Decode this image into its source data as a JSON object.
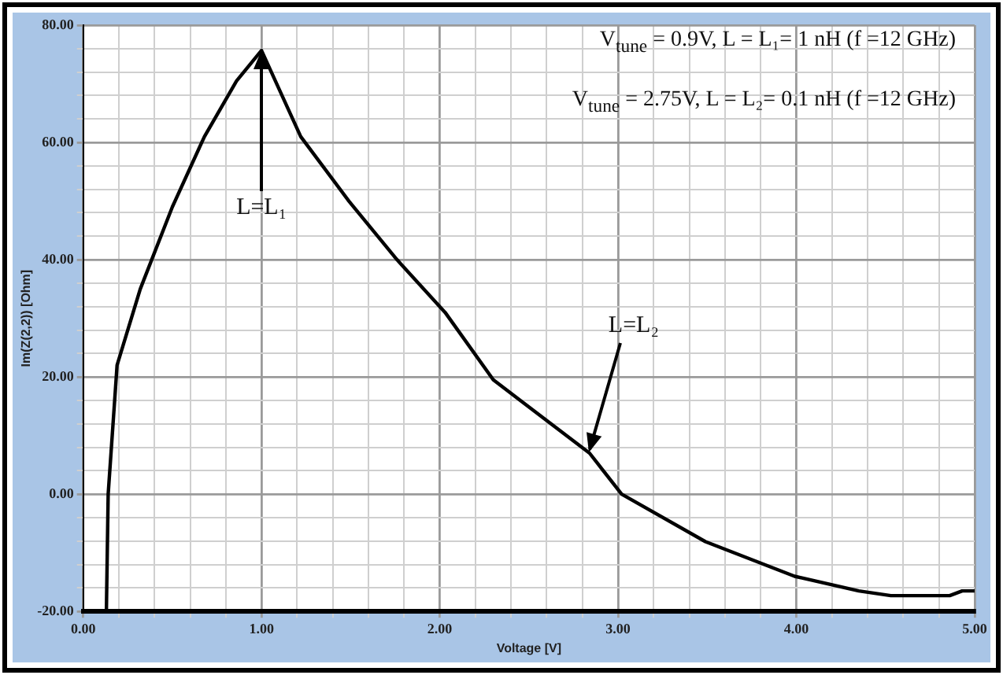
{
  "chart_data": {
    "type": "line",
    "xlabel": "Voltage [V]",
    "ylabel": "Im(Z(2,2)) [Ohm]",
    "x": [
      0.13,
      0.14,
      0.19,
      0.32,
      0.5,
      0.68,
      0.86,
      1.0,
      1.22,
      1.49,
      1.76,
      2.03,
      2.3,
      2.84,
      3.02,
      3.49,
      3.99,
      4.35,
      4.53,
      4.86,
      4.93,
      5.0
    ],
    "series": [
      {
        "color": "#000000",
        "values": [
          -20,
          0,
          22,
          35,
          49,
          61,
          70.5,
          75.7,
          61,
          50,
          40,
          31,
          19.5,
          7,
          0,
          -8.1,
          -14,
          -16.5,
          -17.3,
          -17.3,
          -16.5,
          -16.5
        ]
      }
    ],
    "xlim": [
      0,
      5
    ],
    "ylim": [
      -20,
      80
    ],
    "xticks": [
      {
        "value": 0,
        "label": "0.00"
      },
      {
        "value": 0.2,
        "label": null
      },
      {
        "value": 0.4,
        "label": null
      },
      {
        "value": 0.6,
        "label": null
      },
      {
        "value": 0.8,
        "label": null
      },
      {
        "value": 1,
        "label": "1.00"
      },
      {
        "value": 1.2,
        "label": null
      },
      {
        "value": 1.4,
        "label": null
      },
      {
        "value": 1.6,
        "label": null
      },
      {
        "value": 1.8,
        "label": null
      },
      {
        "value": 2,
        "label": "2.00"
      },
      {
        "value": 2.2,
        "label": null
      },
      {
        "value": 2.4,
        "label": null
      },
      {
        "value": 2.6,
        "label": null
      },
      {
        "value": 2.8,
        "label": null
      },
      {
        "value": 3,
        "label": "3.00"
      },
      {
        "value": 3.2,
        "label": null
      },
      {
        "value": 3.4,
        "label": null
      },
      {
        "value": 3.6,
        "label": null
      },
      {
        "value": 3.8,
        "label": null
      },
      {
        "value": 4,
        "label": "4.00"
      },
      {
        "value": 4.2,
        "label": null
      },
      {
        "value": 4.4,
        "label": null
      },
      {
        "value": 4.6,
        "label": null
      },
      {
        "value": 4.8,
        "label": null
      },
      {
        "value": 5,
        "label": "5.00"
      }
    ],
    "yticks": [
      {
        "value": -20,
        "label": "-20.00"
      },
      {
        "value": -16,
        "label": null
      },
      {
        "value": -12,
        "label": null
      },
      {
        "value": -8,
        "label": null
      },
      {
        "value": -4,
        "label": null
      },
      {
        "value": 0,
        "label": "0.00"
      },
      {
        "value": 4,
        "label": null
      },
      {
        "value": 8,
        "label": null
      },
      {
        "value": 12,
        "label": null
      },
      {
        "value": 16,
        "label": null
      },
      {
        "value": 20,
        "label": "20.00"
      },
      {
        "value": 24,
        "label": null
      },
      {
        "value": 28,
        "label": null
      },
      {
        "value": 32,
        "label": null
      },
      {
        "value": 36,
        "label": null
      },
      {
        "value": 40,
        "label": "40.00"
      },
      {
        "value": 44,
        "label": null
      },
      {
        "value": 48,
        "label": null
      },
      {
        "value": 52,
        "label": null
      },
      {
        "value": 56,
        "label": null
      },
      {
        "value": 60,
        "label": "60.00"
      },
      {
        "value": 64,
        "label": null
      },
      {
        "value": 68,
        "label": null
      },
      {
        "value": 72,
        "label": null
      },
      {
        "value": 76,
        "label": null
      },
      {
        "value": 80,
        "label": "80.00"
      }
    ],
    "grid": true,
    "legend": false,
    "marker": "none",
    "line_style": "solid",
    "annotations": [
      "V$_{tune}$ = 0.9V, L = L₁= 1 nH (f =12 GHz)",
      "V$_{tune}$ = 2.75V, L = L₂= 0.1 nH (f =12 GHz)",
      {
        "text": "L=L₁",
        "x": 1.0,
        "y": 75.7
      },
      {
        "text": "L=L₂",
        "x": 2.84,
        "y": 7
      }
    ]
  }
}
